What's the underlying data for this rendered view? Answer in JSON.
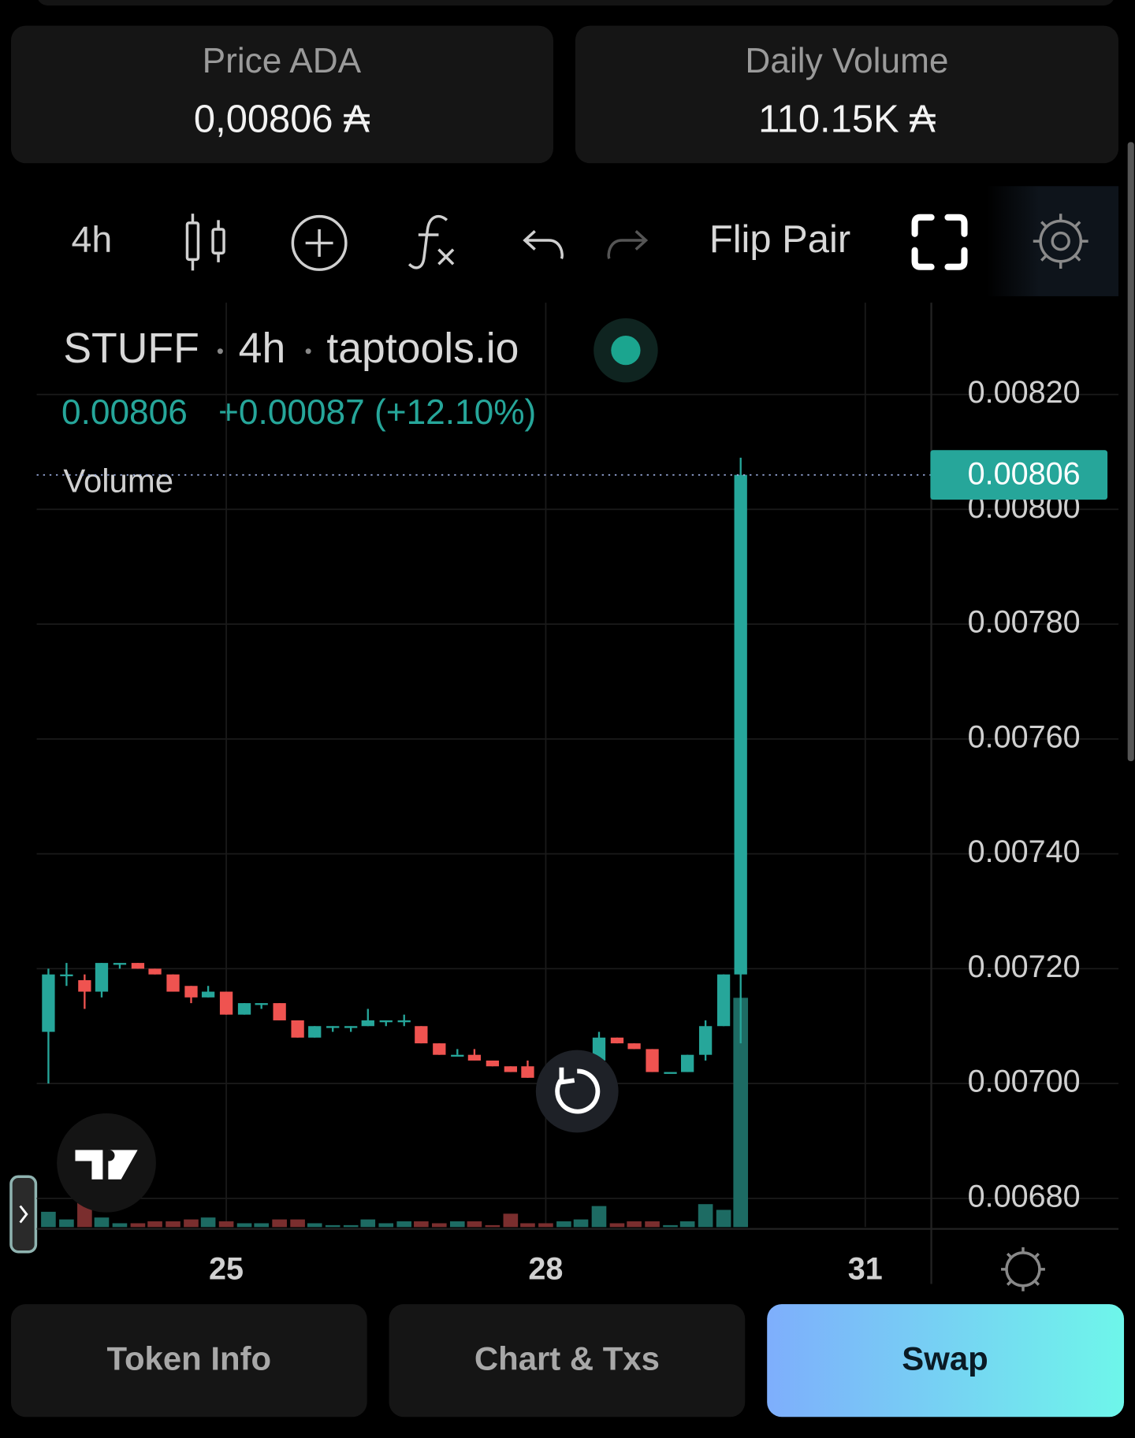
{
  "stats": [
    {
      "label": "Price ADA",
      "value": "0,00806 ₳"
    },
    {
      "label": "Daily Volume",
      "value": "110.15K ₳"
    }
  ],
  "toolbar": {
    "interval": "4h",
    "flip": "Flip Pair"
  },
  "legend": {
    "symbol": "STUFF",
    "interval": "4h",
    "source": "taptools.io",
    "change": "+0.00087 (+12.10%)",
    "volume": "Volume"
  },
  "buttons": [
    "Token Info",
    "Chart & Txs",
    "Swap"
  ],
  "chart_data": {
    "type": "candlestick",
    "x": [
      23.33,
      23.5,
      23.67,
      23.83,
      24,
      24.17,
      24.33,
      24.5,
      24.67,
      24.83,
      25,
      25.17,
      25.33,
      25.5,
      25.67,
      25.83,
      26,
      26.17,
      26.33,
      26.5,
      26.67,
      26.83,
      27,
      27.17,
      27.33,
      27.5,
      27.67,
      27.83,
      28,
      28.17,
      28.33,
      28.5,
      28.67,
      28.83,
      29,
      29.17,
      29.33,
      29.5,
      29.67,
      29.83
    ],
    "open": [
      0.00709,
      0.00719,
      0.00718,
      0.00716,
      0.00721,
      0.00721,
      0.0072,
      0.00719,
      0.00717,
      0.00715,
      0.00716,
      0.00712,
      0.00714,
      0.00714,
      0.00711,
      0.00708,
      0.0071,
      0.0071,
      0.0071,
      0.00711,
      0.00711,
      0.0071,
      0.00707,
      0.00705,
      0.00705,
      0.00704,
      0.00703,
      0.00703,
      0.00701,
      0.007,
      0.00703,
      0.00704,
      0.00708,
      0.00707,
      0.00706,
      0.00702,
      0.00702,
      0.00705,
      0.0071,
      0.00719
    ],
    "high": [
      0.0072,
      0.00721,
      0.00719,
      0.00721,
      0.00721,
      0.00721,
      0.0072,
      0.00719,
      0.00717,
      0.00717,
      0.00716,
      0.00714,
      0.00714,
      0.00714,
      0.00711,
      0.0071,
      0.0071,
      0.0071,
      0.00713,
      0.00711,
      0.00712,
      0.0071,
      0.00707,
      0.00706,
      0.00706,
      0.00704,
      0.00703,
      0.00704,
      0.00701,
      0.00703,
      0.00704,
      0.00709,
      0.00708,
      0.00707,
      0.00706,
      0.00702,
      0.00705,
      0.00711,
      0.00719,
      0.00809
    ],
    "low": [
      0.007,
      0.00717,
      0.00713,
      0.00715,
      0.0072,
      0.0072,
      0.00719,
      0.00716,
      0.00714,
      0.00715,
      0.00712,
      0.00712,
      0.00713,
      0.00711,
      0.00708,
      0.00708,
      0.00709,
      0.00709,
      0.0071,
      0.0071,
      0.0071,
      0.00707,
      0.00705,
      0.00705,
      0.00704,
      0.00703,
      0.00702,
      0.00701,
      0.007,
      0.007,
      0.00702,
      0.00703,
      0.00707,
      0.00706,
      0.00702,
      0.00702,
      0.00702,
      0.00704,
      0.0071,
      0.00707
    ],
    "close": [
      0.00719,
      0.00719,
      0.00716,
      0.00721,
      0.00721,
      0.0072,
      0.00719,
      0.00716,
      0.00715,
      0.00716,
      0.00712,
      0.00714,
      0.00714,
      0.00711,
      0.00708,
      0.0071,
      0.0071,
      0.0071,
      0.00711,
      0.00711,
      0.00711,
      0.00707,
      0.00705,
      0.00705,
      0.00704,
      0.00703,
      0.00702,
      0.00701,
      0.007,
      0.00703,
      0.00703,
      0.00708,
      0.00707,
      0.00706,
      0.00702,
      0.00702,
      0.00705,
      0.0071,
      0.00719,
      0.00806
    ],
    "volume": [
      4,
      2,
      7,
      2.5,
      1,
      1,
      1.5,
      1.5,
      2,
      2.5,
      1.5,
      1,
      1,
      2,
      2,
      1,
      0.5,
      0.5,
      2,
      1,
      1.5,
      1.5,
      1,
      1.5,
      1.5,
      0.5,
      3.5,
      1,
      1,
      1.5,
      2,
      5.5,
      1,
      1.5,
      1.5,
      0.5,
      1.5,
      6,
      4.5,
      60
    ],
    "up_color": "#26a69a",
    "down_color": "#ef5350",
    "up_volume_color": "#1d6b63",
    "down_volume_color": "#7a2e2e",
    "xlim": [
      23.22,
      31.62
    ],
    "xticks": [
      25,
      28,
      31
    ],
    "ylim": [
      0.00675,
      0.00836
    ],
    "yticks": [
      {
        "value": 0.0068,
        "label": "0.00680"
      },
      {
        "value": 0.007,
        "label": "0.00700"
      },
      {
        "value": 0.0072,
        "label": "0.00720"
      },
      {
        "value": 0.0074,
        "label": "0.00740"
      },
      {
        "value": 0.0076,
        "label": "0.00760"
      },
      {
        "value": 0.0078,
        "label": "0.00780"
      },
      {
        "value": 0.008,
        "label": "0.00800"
      },
      {
        "value": 0.0082,
        "label": "0.00820"
      }
    ],
    "volume_lim": [
      0,
      72
    ],
    "grid": true
  }
}
